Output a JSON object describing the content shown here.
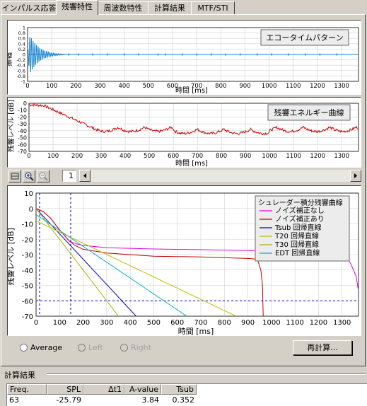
{
  "tabs": [
    {
      "label": "インパルス応答",
      "active": false
    },
    {
      "label": "残響特性",
      "active": true
    },
    {
      "label": "周波数特性",
      "active": false
    },
    {
      "label": "計算結果",
      "active": false
    },
    {
      "label": "MTF/STI",
      "active": false
    }
  ],
  "echo_plot": {
    "legend": "エコータイムパターン",
    "ylabel": "振幅",
    "xlabel": "時間 [ms]",
    "yticks": [
      "1",
      "0.8",
      "0.6",
      "0.4",
      "0.2",
      "0",
      "-0.2",
      "-0.4",
      "-0.6",
      "-0.8",
      "-1"
    ],
    "xticks": [
      "0",
      "100",
      "200",
      "300",
      "400",
      "500",
      "600",
      "700",
      "800",
      "900",
      "1000",
      "1100",
      "1200",
      "1300"
    ]
  },
  "energy_plot": {
    "legend": "残響エネルギー曲線",
    "ylabel": "残響レベル [dB]",
    "xlabel": "時間 [ms]",
    "yticks": [
      "0",
      "-10",
      "-20",
      "-30",
      "-40",
      "-50",
      "-60",
      "-70"
    ],
    "xticks": [
      "0",
      "100",
      "200",
      "300",
      "400",
      "500",
      "600",
      "700",
      "800",
      "900",
      "1000",
      "1100",
      "1200",
      "1300"
    ]
  },
  "toolbar": {
    "page": "1"
  },
  "chart_data": {
    "type": "line",
    "title": "",
    "xlabel": "時間 [ms]",
    "ylabel": "残響レベル [dB]",
    "xlim": [
      0,
      1370
    ],
    "ylim": [
      -70,
      10
    ],
    "xticks": [
      "0",
      "100",
      "200",
      "300",
      "400",
      "500",
      "600",
      "700",
      "800",
      "900",
      "1000",
      "1100",
      "1200",
      "1300"
    ],
    "yticks": [
      "10",
      "0",
      "-10",
      "-20",
      "-30",
      "-40",
      "-50",
      "-60",
      "-70"
    ],
    "grid": true,
    "legend_title": "シュレーダー積分残響曲線",
    "legend_position": "top-right",
    "vlines": [
      15,
      147
    ],
    "hline": -60,
    "series": [
      {
        "name": "ノイズ補正なし",
        "color": "#e000e0",
        "points": [
          [
            0,
            0
          ],
          [
            30,
            -2
          ],
          [
            60,
            -6
          ],
          [
            100,
            -14
          ],
          [
            140,
            -21
          ],
          [
            170,
            -23
          ],
          [
            200,
            -24
          ],
          [
            300,
            -25.5
          ],
          [
            500,
            -26.3
          ],
          [
            700,
            -26.8
          ],
          [
            900,
            -27.3
          ],
          [
            1100,
            -27.8
          ],
          [
            1300,
            -28
          ],
          [
            1320,
            -31
          ],
          [
            1340,
            -37
          ],
          [
            1360,
            -44
          ],
          [
            1368,
            -52
          ]
        ]
      },
      {
        "name": "ノイズ補正あり",
        "color": "#c00000",
        "points": [
          [
            0,
            0
          ],
          [
            30,
            -2
          ],
          [
            60,
            -6
          ],
          [
            100,
            -14
          ],
          [
            140,
            -21
          ],
          [
            165,
            -24
          ],
          [
            200,
            -26.5
          ],
          [
            300,
            -29
          ],
          [
            500,
            -31
          ],
          [
            700,
            -31.5
          ],
          [
            900,
            -32.5
          ],
          [
            940,
            -33
          ],
          [
            955,
            -40
          ],
          [
            962,
            -50
          ],
          [
            965,
            -70
          ]
        ]
      },
      {
        "name": "Tsub 回帰直線",
        "color": "#0000c0",
        "points": [
          [
            0,
            0
          ],
          [
            425,
            -70
          ]
        ]
      },
      {
        "name": "T20 回帰直線",
        "color": "#c0c000",
        "points": [
          [
            0,
            -8
          ],
          [
            850,
            -70
          ]
        ]
      },
      {
        "name": "T30 回帰直線",
        "color": "#b0b000",
        "points": [
          [
            0,
            0
          ],
          [
            350,
            -70
          ]
        ]
      },
      {
        "name": "EDT 回帰直線",
        "color": "#00b0c0",
        "points": [
          [
            0,
            -4
          ],
          [
            640,
            -70
          ]
        ]
      }
    ]
  },
  "radios": {
    "average": "Average",
    "left": "Left",
    "right": "Right"
  },
  "recalc_button": "再計算...",
  "results": {
    "section_label": "計算結果",
    "headers": [
      "Freq.",
      "SPL",
      "Δt1",
      "A-value",
      "Tsub"
    ],
    "row": [
      "63",
      "-25.79",
      "",
      "3.84",
      "0.352"
    ]
  }
}
